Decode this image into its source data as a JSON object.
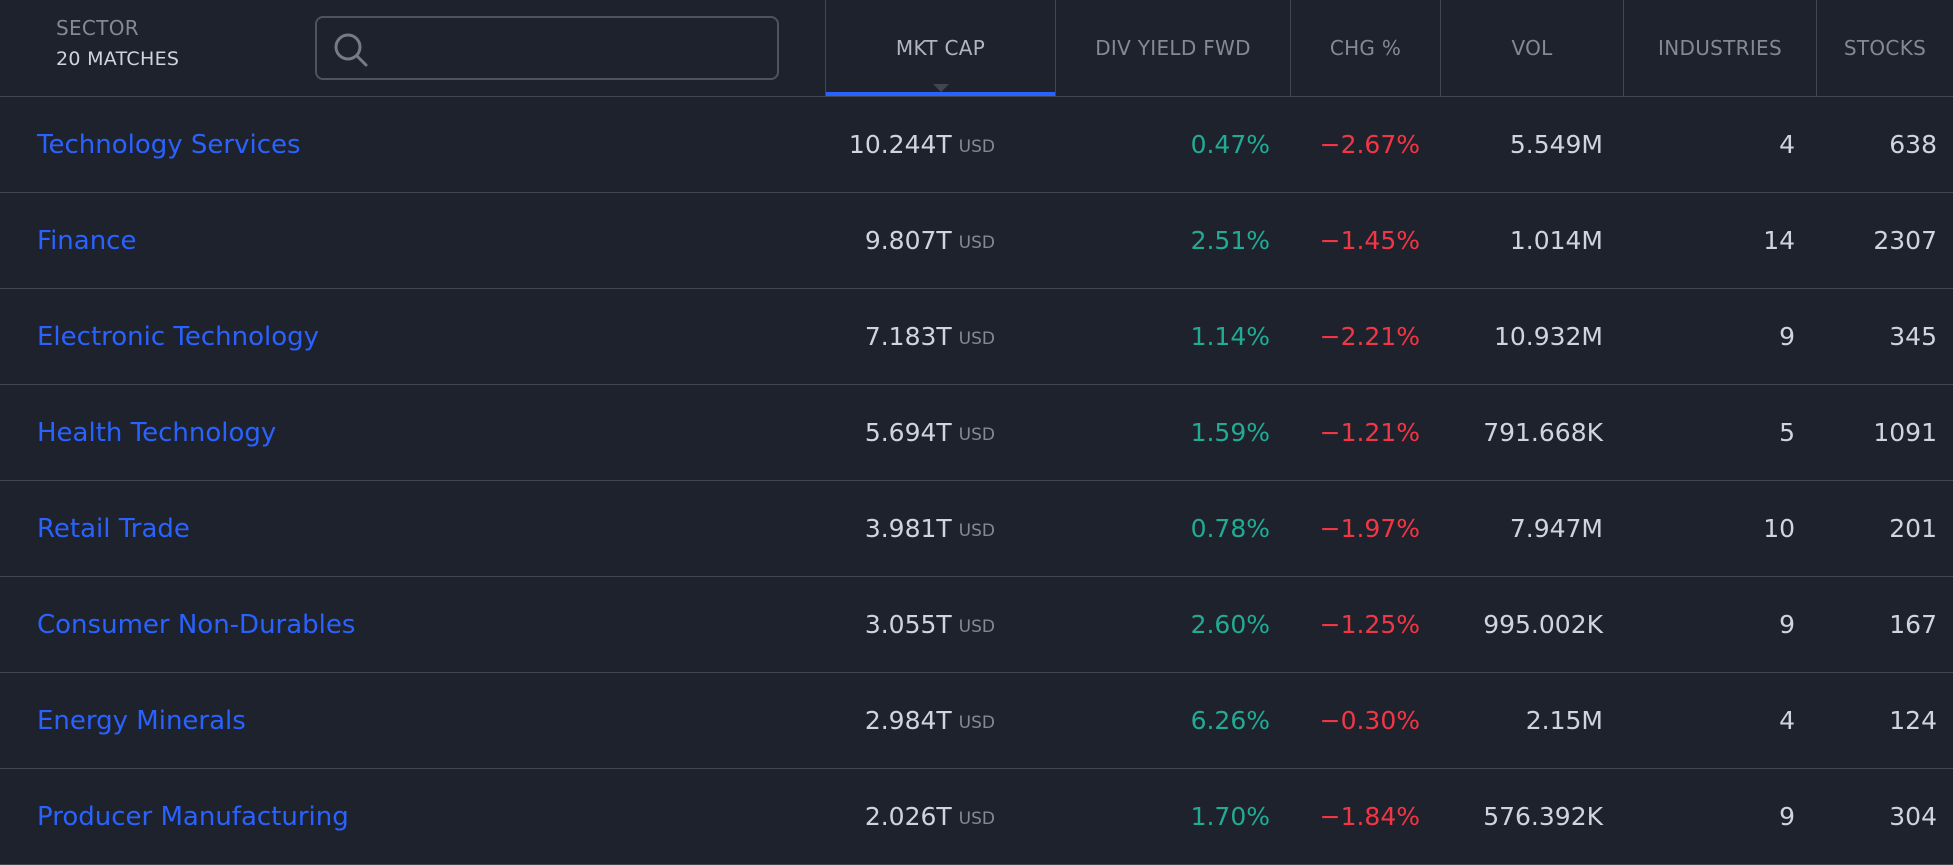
{
  "header": {
    "sector_label": "SECTOR",
    "matches": "20 MATCHES",
    "search_placeholder": "",
    "columns": {
      "mkt_cap": "MKT CAP",
      "div_yield": "DIV YIELD FWD",
      "chg": "CHG %",
      "vol": "VOL",
      "industries": "INDUSTRIES",
      "stocks": "STOCKS"
    },
    "active_sort": "MKT CAP"
  },
  "colors": {
    "link": "#2962ff",
    "positive": "#22ab94",
    "negative": "#f23645",
    "background": "#1e222d",
    "active_tab": "#2962ff"
  },
  "icons": {
    "search": "search-icon"
  },
  "rows": [
    {
      "name": "Technology Services",
      "mkt_cap": "10.244T",
      "unit": "USD",
      "div_yield": "0.47%",
      "chg": "−2.67%",
      "vol": "5.549M",
      "industries": "4",
      "stocks": "638"
    },
    {
      "name": "Finance",
      "mkt_cap": "9.807T",
      "unit": "USD",
      "div_yield": "2.51%",
      "chg": "−1.45%",
      "vol": "1.014M",
      "industries": "14",
      "stocks": "2307"
    },
    {
      "name": "Electronic Technology",
      "mkt_cap": "7.183T",
      "unit": "USD",
      "div_yield": "1.14%",
      "chg": "−2.21%",
      "vol": "10.932M",
      "industries": "9",
      "stocks": "345"
    },
    {
      "name": "Health Technology",
      "mkt_cap": "5.694T",
      "unit": "USD",
      "div_yield": "1.59%",
      "chg": "−1.21%",
      "vol": "791.668K",
      "industries": "5",
      "stocks": "1091"
    },
    {
      "name": "Retail Trade",
      "mkt_cap": "3.981T",
      "unit": "USD",
      "div_yield": "0.78%",
      "chg": "−1.97%",
      "vol": "7.947M",
      "industries": "10",
      "stocks": "201"
    },
    {
      "name": "Consumer Non-Durables",
      "mkt_cap": "3.055T",
      "unit": "USD",
      "div_yield": "2.60%",
      "chg": "−1.25%",
      "vol": "995.002K",
      "industries": "9",
      "stocks": "167"
    },
    {
      "name": "Energy Minerals",
      "mkt_cap": "2.984T",
      "unit": "USD",
      "div_yield": "6.26%",
      "chg": "−0.30%",
      "vol": "2.15M",
      "industries": "4",
      "stocks": "124"
    },
    {
      "name": "Producer Manufacturing",
      "mkt_cap": "2.026T",
      "unit": "USD",
      "div_yield": "1.70%",
      "chg": "−1.84%",
      "vol": "576.392K",
      "industries": "9",
      "stocks": "304"
    }
  ]
}
